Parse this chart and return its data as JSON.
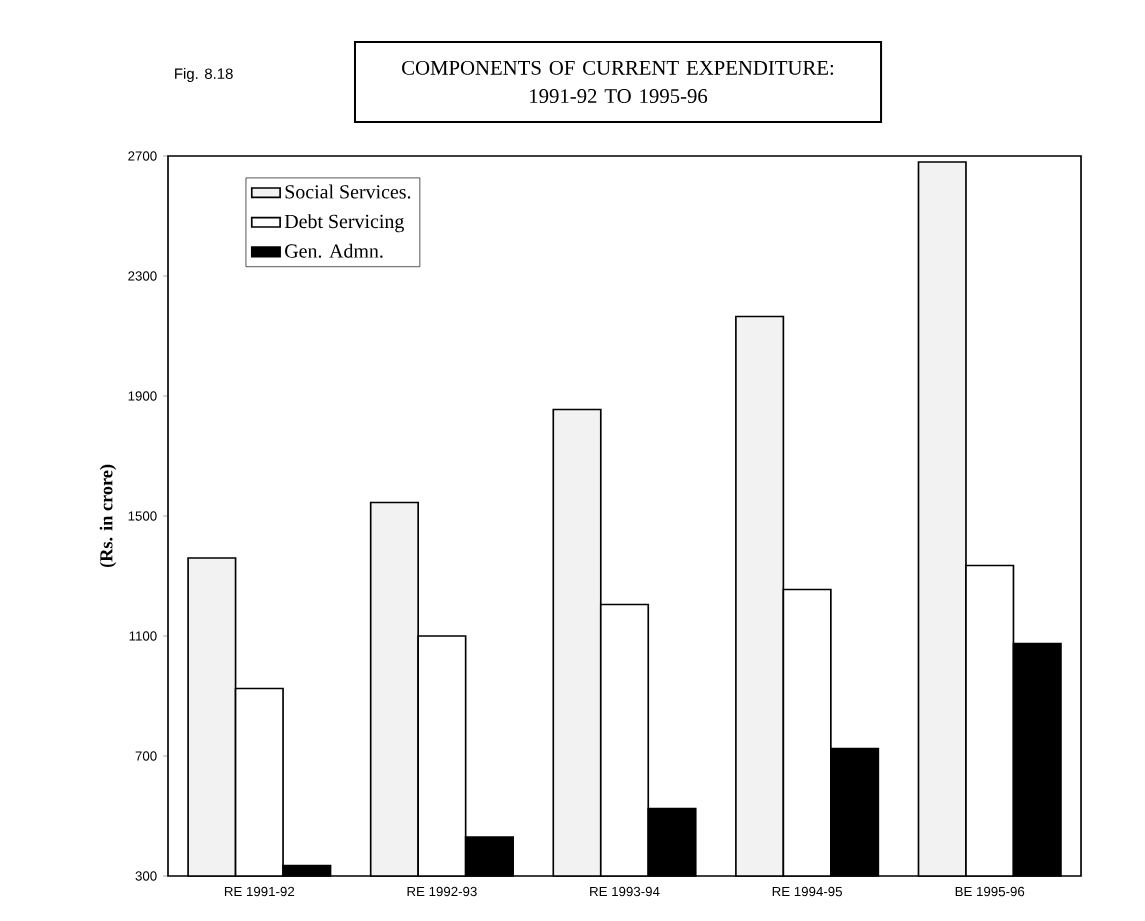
{
  "chart_data": {
    "type": "bar",
    "title": "COMPONENTS OF CURRENT EXPENDITURE:\n1991-92 TO 1995-96",
    "ylabel": "(Rs. in crore)",
    "annotations": [
      "Fig. 8.18"
    ],
    "categories": [
      "RE 1991-92",
      "RE 1992-93",
      "RE 1993-94",
      "RE 1994-95",
      "BE 1995-96"
    ],
    "series": [
      {
        "name": "Social Services.",
        "color": "#f2f2f2",
        "values": [
          1360,
          1545,
          1855,
          2165,
          2680
        ]
      },
      {
        "name": "Debt Servicing",
        "color": "#ffffff",
        "values": [
          925,
          1100,
          1205,
          1255,
          1335
        ]
      },
      {
        "name": "Gen. Admn.",
        "color": "#000000",
        "values": [
          335,
          430,
          525,
          725,
          1075
        ]
      }
    ],
    "ylim": [
      300,
      2700
    ],
    "yticks": [
      300,
      700,
      1100,
      1500,
      1900,
      2300,
      2700
    ],
    "legend": "top left"
  }
}
